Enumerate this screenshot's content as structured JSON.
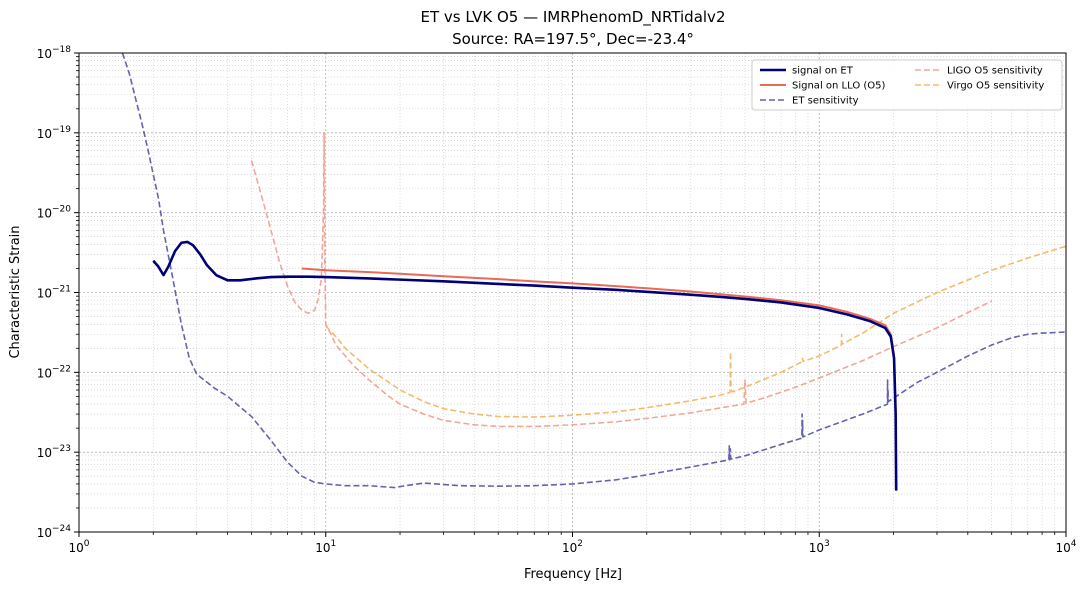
{
  "chart_data": {
    "type": "line",
    "title": "ET vs LVK O5 — IMRPhenomD_NRTidalv2",
    "subtitle": "Source: RA=197.5°, Dec=-23.4°",
    "xlabel": "Frequency [Hz]",
    "ylabel": "Characteristic Strain",
    "xscale": "log",
    "yscale": "log",
    "xlim": [
      1,
      10000
    ],
    "ylim": [
      1e-24,
      1e-18
    ],
    "x_tick_labels": [
      {
        "base": "10",
        "exp": "0"
      },
      {
        "base": "10",
        "exp": "1"
      },
      {
        "base": "10",
        "exp": "2"
      },
      {
        "base": "10",
        "exp": "3"
      },
      {
        "base": "10",
        "exp": "4"
      }
    ],
    "y_tick_labels": [
      {
        "base": "10",
        "exp": "−24"
      },
      {
        "base": "10",
        "exp": "−23"
      },
      {
        "base": "10",
        "exp": "−22"
      },
      {
        "base": "10",
        "exp": "−21"
      },
      {
        "base": "10",
        "exp": "−20"
      },
      {
        "base": "10",
        "exp": "−19"
      },
      {
        "base": "10",
        "exp": "−18"
      }
    ],
    "grid": true,
    "legend_position": "top-right",
    "series": [
      {
        "name": "signal on ET",
        "color": "#00007a",
        "style": "solid",
        "x": [
          2.0,
          2.1,
          2.2,
          2.3,
          2.45,
          2.6,
          2.75,
          2.9,
          3.1,
          3.3,
          3.6,
          4.0,
          4.5,
          5.2,
          6.0,
          7.0,
          8.5,
          10,
          15,
          20,
          30,
          50,
          70,
          100,
          150,
          200,
          300,
          400,
          500,
          700,
          1000,
          1300,
          1600,
          1850,
          1950,
          2010,
          2040,
          2050
        ],
        "y": [
          2.5e-21,
          2.1e-21,
          1.65e-21,
          2.1e-21,
          3.3e-21,
          4.2e-21,
          4.3e-21,
          3.9e-21,
          3e-21,
          2.2e-21,
          1.65e-21,
          1.42e-21,
          1.42e-21,
          1.5e-21,
          1.56e-21,
          1.58e-21,
          1.58e-21,
          1.56e-21,
          1.5e-21,
          1.45e-21,
          1.38e-21,
          1.28e-21,
          1.22e-21,
          1.15e-21,
          1.08e-21,
          1.02e-21,
          9.4e-22,
          8.8e-22,
          8.3e-22,
          7.5e-22,
          6.4e-22,
          5.3e-22,
          4.4e-22,
          3.6e-22,
          2.8e-22,
          1.5e-22,
          3e-23,
          3.3e-24
        ]
      },
      {
        "name": "Signal on LLO (O5)",
        "color": "#ea6a55",
        "style": "solid",
        "x": [
          8,
          10,
          15,
          20,
          30,
          50,
          70,
          100,
          150,
          200,
          300,
          500,
          700,
          1000,
          1300,
          1600,
          1850,
          1950,
          2010,
          2040,
          2050
        ],
        "y": [
          2e-21,
          1.9e-21,
          1.8e-21,
          1.72e-21,
          1.6e-21,
          1.47e-21,
          1.38e-21,
          1.3e-21,
          1.2e-21,
          1.13e-21,
          1.03e-21,
          8.9e-22,
          8e-22,
          6.9e-22,
          5.7e-22,
          4.7e-22,
          3.9e-22,
          3e-22,
          1.6e-22,
          3.2e-23,
          3.5e-24
        ]
      },
      {
        "name": "ET sensitivity",
        "color": "#3d3d99",
        "style": "dashed",
        "x": [
          1.5,
          1.6,
          1.7,
          1.8,
          1.9,
          2.0,
          2.1,
          2.2,
          2.4,
          2.6,
          2.8,
          3.0,
          3.5,
          4.0,
          5.0,
          6.0,
          7.0,
          8.0,
          9.0,
          10,
          12,
          15,
          19,
          21,
          25,
          28,
          35,
          50,
          70,
          100,
          150,
          200,
          300,
          430,
          432,
          434,
          436,
          438,
          500,
          700,
          850,
          852,
          854,
          856,
          858,
          1000,
          1500,
          1890,
          1892,
          1895,
          1900,
          1905,
          2500,
          3000,
          4000,
          5000,
          6000,
          7000,
          8000,
          9000,
          10000
        ],
        "y": [
          1e-18,
          5.5e-19,
          2.6e-19,
          1.3e-19,
          6.3e-20,
          3e-20,
          1.5e-20,
          6e-21,
          1.5e-21,
          4e-22,
          1.5e-22,
          9.5e-23,
          6.5e-23,
          5e-23,
          2.8e-23,
          1.4e-23,
          7.5e-24,
          5e-24,
          4.2e-24,
          4e-24,
          3.8e-24,
          3.8e-24,
          3.6e-24,
          3.8e-24,
          4.1e-24,
          4e-24,
          3.8e-24,
          3.75e-24,
          3.8e-24,
          4e-24,
          4.5e-24,
          5.2e-24,
          6.5e-24,
          8e-24,
          1.2e-23,
          8e-24,
          1.1e-23,
          8.2e-24,
          9e-24,
          1.25e-23,
          1.5e-23,
          3e-23,
          1.6e-23,
          2.5e-23,
          1.55e-23,
          1.9e-23,
          3e-23,
          4e-23,
          8e-23,
          4.2e-23,
          6e-23,
          4.3e-23,
          7.5e-23,
          1e-22,
          1.6e-22,
          2.2e-22,
          2.7e-22,
          3e-22,
          3.1e-22,
          3.15e-22,
          3.2e-22
        ]
      },
      {
        "name": "LIGO O5 sensitivity",
        "color": "#f19c8e",
        "style": "dashed",
        "x": [
          5.0,
          5.5,
          6.0,
          6.5,
          7.0,
          7.5,
          8.0,
          8.5,
          9.0,
          9.3,
          9.6,
          9.8,
          9.85,
          9.9,
          10,
          10.5,
          11,
          12,
          13,
          15,
          18,
          20,
          25,
          30,
          40,
          50,
          70,
          100,
          150,
          200,
          300,
          400,
          495,
          500,
          505,
          600,
          800,
          1000,
          1500,
          2000,
          3000,
          4000,
          5000
        ],
        "y": [
          4.5e-20,
          1.6e-20,
          6e-21,
          2.4e-21,
          1.2e-21,
          7.5e-22,
          6e-22,
          5.5e-22,
          6e-22,
          8e-22,
          1.5e-21,
          1.2e-20,
          1e-19,
          3e-21,
          4e-22,
          3e-22,
          2.2e-22,
          1.6e-22,
          1.2e-22,
          8e-23,
          5e-23,
          4e-23,
          3e-23,
          2.5e-23,
          2.2e-23,
          2.1e-23,
          2.1e-23,
          2.2e-23,
          2.4e-23,
          2.65e-23,
          3.1e-23,
          3.6e-23,
          4e-23,
          8e-23,
          4.1e-23,
          4.8e-23,
          6.5e-23,
          8.5e-23,
          1.4e-22,
          2.1e-22,
          3.6e-22,
          5.6e-22,
          7.8e-22
        ]
      },
      {
        "name": "Virgo O5 sensitivity",
        "color": "#f5b25e",
        "style": "dashed",
        "x": [
          10,
          11,
          12,
          15,
          20,
          25,
          30,
          40,
          50,
          70,
          100,
          150,
          200,
          300,
          400,
          435,
          437,
          439,
          445,
          500,
          700,
          850,
          855,
          860,
          1000,
          1230,
          1232,
          1235,
          1500,
          2000,
          3000,
          5000,
          7000,
          10000
        ],
        "y": [
          3.8e-22,
          2.8e-22,
          2e-22,
          1.1e-22,
          6e-23,
          4.3e-23,
          3.5e-23,
          3e-23,
          2.8e-23,
          2.75e-23,
          2.9e-23,
          3.2e-23,
          3.6e-23,
          4.4e-23,
          5.2e-23,
          5.6e-23,
          1.8e-22,
          6e-23,
          5.7e-23,
          6.5e-23,
          1e-22,
          1.35e-22,
          1.5e-22,
          1.37e-22,
          1.6e-22,
          2.2e-22,
          3e-22,
          2.25e-22,
          3.1e-22,
          5.5e-22,
          1e-21,
          1.9e-21,
          2.7e-21,
          3.8e-21
        ]
      }
    ]
  }
}
